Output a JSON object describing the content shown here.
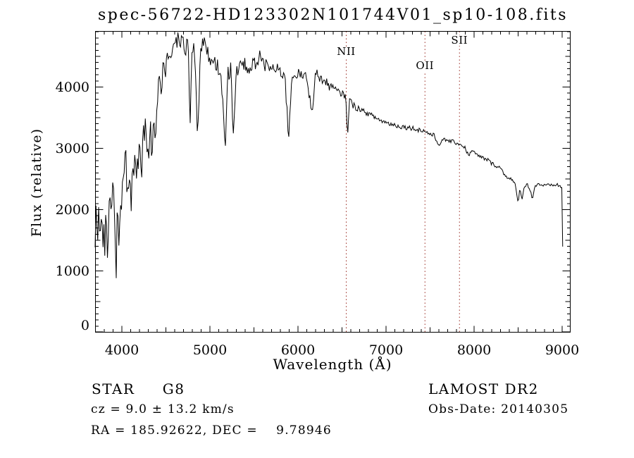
{
  "chart_data": {
    "type": "line",
    "title": "spec-56722-HD123302N101744V01_sp10-108.fits",
    "xlabel": "Wavelength (Å)",
    "ylabel": "Flux (relative)",
    "xlim": [
      3696,
      9096
    ],
    "ylim": [
      0,
      4914
    ],
    "xticks": [
      4000,
      5000,
      6000,
      7000,
      8000,
      9000
    ],
    "yticks": [
      0,
      1000,
      2000,
      3000,
      4000
    ],
    "x_minor_step": 100,
    "y_minor_step": 100,
    "grid": false,
    "line_color": "#000000",
    "marker_color": "#9a2b22",
    "line_markers": [
      {
        "label": "NII",
        "wavelength": 6548,
        "label_top": 66
      },
      {
        "label": "OII",
        "wavelength": 7442,
        "label_top": 86
      },
      {
        "label": "SII",
        "wavelength": 7834,
        "label_top": 50
      }
    ],
    "sample_step": 10,
    "noise_seed": 20140305,
    "noise_bands": [
      [
        3696,
        4000,
        330
      ],
      [
        4000,
        4300,
        270
      ],
      [
        4300,
        4550,
        220
      ],
      [
        4550,
        5000,
        160
      ],
      [
        5000,
        5350,
        150
      ],
      [
        5350,
        5900,
        110
      ],
      [
        5900,
        6400,
        80
      ],
      [
        6400,
        6700,
        55
      ],
      [
        6700,
        7600,
        40
      ],
      [
        7600,
        8450,
        32
      ],
      [
        8450,
        9000,
        26
      ],
      [
        9000,
        9013,
        12
      ]
    ],
    "spectrum_anchors": [
      [
        3696,
        1500
      ],
      [
        3705,
        2050
      ],
      [
        3712,
        1150
      ],
      [
        3720,
        2150
      ],
      [
        3728,
        1250
      ],
      [
        3736,
        2000
      ],
      [
        3744,
        1200
      ],
      [
        3752,
        2250
      ],
      [
        3762,
        1400
      ],
      [
        3772,
        1900
      ],
      [
        3782,
        1250
      ],
      [
        3795,
        1850
      ],
      [
        3808,
        1300
      ],
      [
        3822,
        1850
      ],
      [
        3836,
        1400
      ],
      [
        3850,
        1800
      ],
      [
        3865,
        2250
      ],
      [
        3880,
        2050
      ],
      [
        3895,
        2400
      ],
      [
        3910,
        2100
      ],
      [
        3920,
        1700
      ],
      [
        3933,
        820
      ],
      [
        3948,
        1900
      ],
      [
        3958,
        1500
      ],
      [
        3968,
        1000
      ],
      [
        3980,
        1800
      ],
      [
        3995,
        2250
      ],
      [
        4010,
        2450
      ],
      [
        4030,
        2600
      ],
      [
        4045,
        2750
      ],
      [
        4060,
        2350
      ],
      [
        4080,
        2650
      ],
      [
        4102,
        2080
      ],
      [
        4120,
        2600
      ],
      [
        4140,
        2780
      ],
      [
        4160,
        2650
      ],
      [
        4180,
        2550
      ],
      [
        4200,
        3100
      ],
      [
        4227,
        2700
      ],
      [
        4250,
        3450
      ],
      [
        4270,
        3250
      ],
      [
        4290,
        2900
      ],
      [
        4308,
        2720
      ],
      [
        4325,
        3350
      ],
      [
        4340,
        2700
      ],
      [
        4360,
        3550
      ],
      [
        4383,
        3150
      ],
      [
        4400,
        3850
      ],
      [
        4430,
        4000
      ],
      [
        4460,
        4150
      ],
      [
        4500,
        4350
      ],
      [
        4550,
        4600
      ],
      [
        4600,
        4720
      ],
      [
        4640,
        4800
      ],
      [
        4668,
        4650
      ],
      [
        4700,
        4780
      ],
      [
        4720,
        4550
      ],
      [
        4750,
        4800
      ],
      [
        4776,
        3450
      ],
      [
        4800,
        4700
      ],
      [
        4830,
        4550
      ],
      [
        4861,
        3150
      ],
      [
        4890,
        4600
      ],
      [
        4920,
        4700
      ],
      [
        4950,
        4650
      ],
      [
        4980,
        4550
      ],
      [
        5010,
        4480
      ],
      [
        5040,
        4430
      ],
      [
        5070,
        4350
      ],
      [
        5100,
        4320
      ],
      [
        5140,
        3950
      ],
      [
        5172,
        2880
      ],
      [
        5200,
        4200
      ],
      [
        5235,
        4300
      ],
      [
        5270,
        3150
      ],
      [
        5300,
        4250
      ],
      [
        5330,
        4350
      ],
      [
        5360,
        4300
      ],
      [
        5400,
        4380
      ],
      [
        5430,
        4300
      ],
      [
        5460,
        4340
      ],
      [
        5500,
        4400
      ],
      [
        5530,
        4370
      ],
      [
        5577,
        4550
      ],
      [
        5600,
        4370
      ],
      [
        5650,
        4340
      ],
      [
        5700,
        4310
      ],
      [
        5750,
        4280
      ],
      [
        5800,
        4250
      ],
      [
        5850,
        4220
      ],
      [
        5893,
        3170
      ],
      [
        5930,
        4170
      ],
      [
        5970,
        4210
      ],
      [
        6000,
        4220
      ],
      [
        6050,
        4180
      ],
      [
        6100,
        4160
      ],
      [
        6122,
        3900
      ],
      [
        6162,
        3620
      ],
      [
        6200,
        4240
      ],
      [
        6250,
        4150
      ],
      [
        6300,
        4090
      ],
      [
        6350,
        4030
      ],
      [
        6400,
        3980
      ],
      [
        6450,
        3930
      ],
      [
        6495,
        3890
      ],
      [
        6540,
        3860
      ],
      [
        6563,
        3230
      ],
      [
        6585,
        3800
      ],
      [
        6620,
        3710
      ],
      [
        6650,
        3680
      ],
      [
        6700,
        3640
      ],
      [
        6750,
        3600
      ],
      [
        6800,
        3560
      ],
      [
        6850,
        3530
      ],
      [
        6900,
        3480
      ],
      [
        6950,
        3450
      ],
      [
        7000,
        3420
      ],
      [
        7050,
        3400
      ],
      [
        7100,
        3380
      ],
      [
        7150,
        3360
      ],
      [
        7200,
        3350
      ],
      [
        7250,
        3340
      ],
      [
        7300,
        3330
      ],
      [
        7350,
        3310
      ],
      [
        7420,
        3290
      ],
      [
        7480,
        3250
      ],
      [
        7550,
        3200
      ],
      [
        7594,
        3060
      ],
      [
        7621,
        3100
      ],
      [
        7660,
        3140
      ],
      [
        7700,
        3130
      ],
      [
        7750,
        3110
      ],
      [
        7800,
        3090
      ],
      [
        7850,
        3060
      ],
      [
        7900,
        3010
      ],
      [
        7940,
        2860
      ],
      [
        7970,
        2980
      ],
      [
        8020,
        2900
      ],
      [
        8070,
        2860
      ],
      [
        8120,
        2830
      ],
      [
        8170,
        2800
      ],
      [
        8200,
        2750
      ],
      [
        8250,
        2720
      ],
      [
        8300,
        2680
      ],
      [
        8350,
        2560
      ],
      [
        8400,
        2520
      ],
      [
        8440,
        2470
      ],
      [
        8470,
        2390
      ],
      [
        8498,
        2110
      ],
      [
        8520,
        2340
      ],
      [
        8542,
        2160
      ],
      [
        8570,
        2380
      ],
      [
        8600,
        2420
      ],
      [
        8630,
        2340
      ],
      [
        8662,
        2190
      ],
      [
        8690,
        2380
      ],
      [
        8730,
        2420
      ],
      [
        8770,
        2400
      ],
      [
        8810,
        2390
      ],
      [
        8850,
        2400
      ],
      [
        8890,
        2390
      ],
      [
        8930,
        2410
      ],
      [
        8970,
        2390
      ],
      [
        9000,
        2360
      ],
      [
        9004,
        2280
      ],
      [
        9008,
        500
      ],
      [
        9010,
        40
      ],
      [
        9012,
        30
      ]
    ]
  },
  "footer": {
    "class_label": "STAR     G8",
    "cz": "cz = 9.0 ± 13.2 km/s",
    "radec": "RA = 185.92622, DEC =    9.78946",
    "survey": "LAMOST DR2",
    "obs_date": "Obs-Date: 20140305"
  }
}
